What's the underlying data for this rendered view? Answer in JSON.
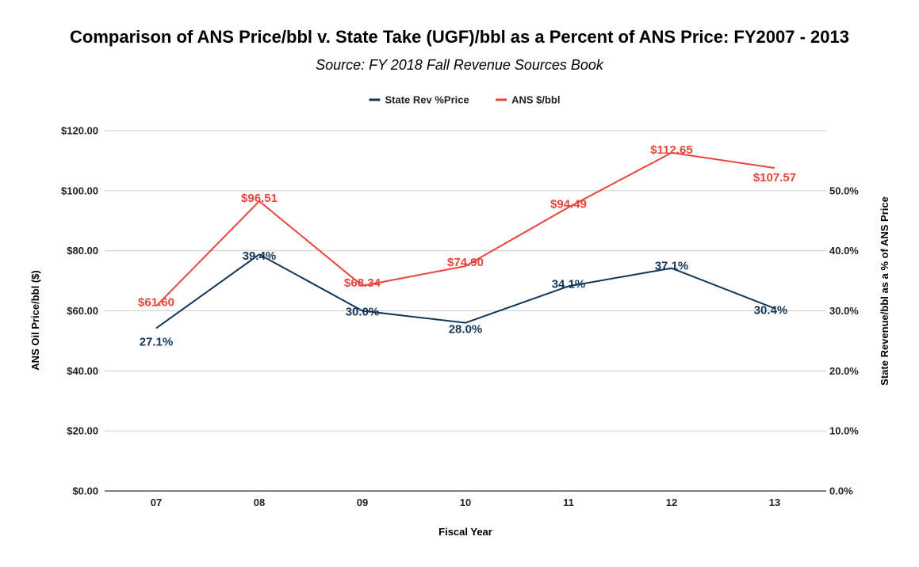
{
  "chart_data": {
    "type": "line",
    "title": "Comparison of ANS Price/bbl v. State Take (UGF)/bbl as a Percent of ANS Price: FY2007 - 2013",
    "subtitle": "Source: FY 2018 Fall Revenue Sources Book",
    "xlabel": "Fiscal Year",
    "ylabel_left": "ANS Oil Price/bbl ($)",
    "ylabel_right": "State Revenue/bbl as a % of ANS Price",
    "categories": [
      "07",
      "08",
      "09",
      "10",
      "11",
      "12",
      "13"
    ],
    "left_axis": {
      "ylim": [
        0,
        120
      ],
      "ticks": [
        0,
        20,
        40,
        60,
        80,
        100,
        120
      ],
      "tick_labels": [
        "$0.00",
        "$20.00",
        "$40.00",
        "$60.00",
        "$80.00",
        "$100.00",
        "$120.00"
      ]
    },
    "right_axis": {
      "ylim": [
        0,
        60
      ],
      "ticks": [
        0,
        10,
        20,
        30,
        40,
        50
      ],
      "tick_labels": [
        "0.0%",
        "10.0%",
        "20.0%",
        "30.0%",
        "40.0%",
        "50.0%"
      ]
    },
    "grid": true,
    "legend_position": "top-center",
    "series": [
      {
        "name": "State Rev %Price",
        "axis": "right",
        "color": "#12365a",
        "values": [
          27.1,
          39.4,
          30.0,
          28.0,
          34.1,
          37.1,
          30.4
        ],
        "labels": [
          "27.1%",
          "39.4%",
          "30.0%",
          "28.0%",
          "34.1%",
          "37.1%",
          "30.4%"
        ]
      },
      {
        "name": "ANS $/bbl",
        "axis": "left",
        "color": "#e8453c",
        "values": [
          61.6,
          96.51,
          68.34,
          74.9,
          94.49,
          112.65,
          107.57
        ],
        "labels": [
          "$61.60",
          "$96.51",
          "$68.34",
          "$74.90",
          "$94.49",
          "$112.65",
          "$107.57"
        ]
      }
    ]
  }
}
